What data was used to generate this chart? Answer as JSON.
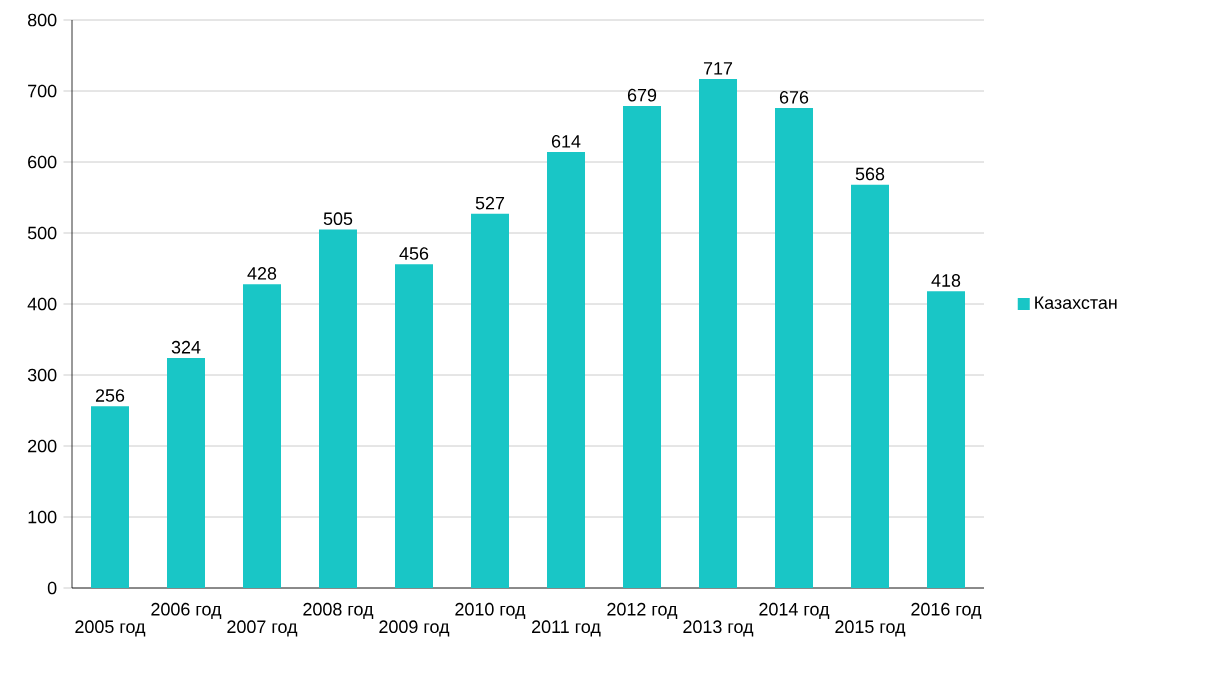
{
  "chart_data": {
    "type": "bar",
    "categories": [
      "2005 год",
      "2006 год",
      "2007 год",
      "2008 год",
      "2009 год",
      "2010 год",
      "2011 год",
      "2012 год",
      "2013 год",
      "2014 год",
      "2015 год",
      "2016 год"
    ],
    "series": [
      {
        "name": "Казахстан",
        "color": "#19c6c6",
        "values": [
          256,
          324,
          428,
          505,
          456,
          527,
          614,
          679,
          717,
          676,
          568,
          418
        ]
      }
    ],
    "ylim": [
      0,
      800
    ],
    "yticks": [
      0,
      100,
      200,
      300,
      400,
      500,
      600,
      700,
      800
    ],
    "grid": "y",
    "legend": "right",
    "data_labels": true
  }
}
